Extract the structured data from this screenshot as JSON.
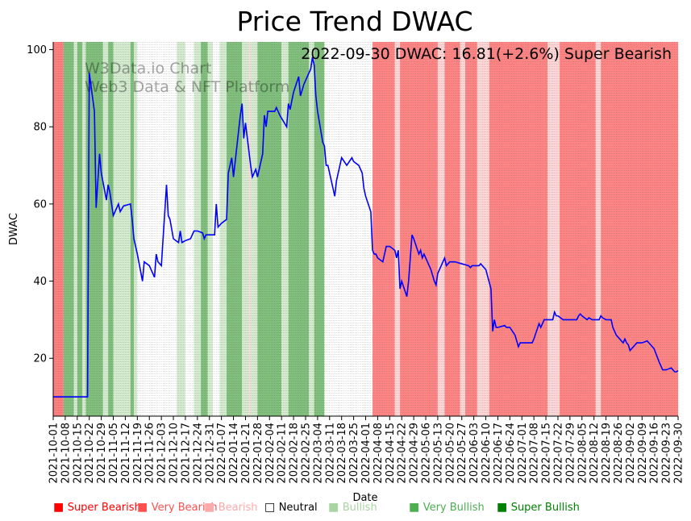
{
  "chart_data": {
    "type": "line",
    "title": "Price Trend DWAC",
    "annotation": "2022-09-30 DWAC: 16.81(+2.6%) Super Bearish",
    "watermark": [
      "W3Data.io Chart",
      "Web3 Data & NFT Platform"
    ],
    "xlabel": "Date",
    "ylabel": "DWAC",
    "ylim": [
      5,
      102
    ],
    "yticks": [
      20,
      40,
      60,
      80,
      100
    ],
    "x_range": [
      "2021-10-01",
      "2022-09-30"
    ],
    "xticks": [
      "2021-10-01",
      "2021-10-08",
      "2021-10-15",
      "2021-10-22",
      "2021-10-29",
      "2021-11-05",
      "2021-11-12",
      "2021-11-19",
      "2021-11-26",
      "2021-12-03",
      "2021-12-10",
      "2021-12-17",
      "2021-12-24",
      "2021-12-31",
      "2022-01-07",
      "2022-01-14",
      "2022-01-21",
      "2022-01-28",
      "2022-02-04",
      "2022-02-11",
      "2022-02-18",
      "2022-02-25",
      "2022-03-04",
      "2022-03-11",
      "2022-03-18",
      "2022-03-25",
      "2022-04-01",
      "2022-04-08",
      "2022-04-15",
      "2022-04-22",
      "2022-04-29",
      "2022-05-06",
      "2022-05-13",
      "2022-05-20",
      "2022-05-27",
      "2022-06-03",
      "2022-06-10",
      "2022-06-17",
      "2022-06-24",
      "2022-07-01",
      "2022-07-08",
      "2022-07-15",
      "2022-07-22",
      "2022-07-29",
      "2022-08-05",
      "2022-08-12",
      "2022-08-19",
      "2022-08-26",
      "2022-09-02",
      "2022-09-09",
      "2022-09-16",
      "2022-09-23",
      "2022-09-30"
    ],
    "series": [
      {
        "name": "DWAC",
        "color": "#0000ff",
        "points": [
          [
            "2021-10-01",
            10
          ],
          [
            "2021-10-21",
            10
          ],
          [
            "2021-10-22",
            94
          ],
          [
            "2021-10-25",
            84
          ],
          [
            "2021-10-26",
            59
          ],
          [
            "2021-10-28",
            73
          ],
          [
            "2021-10-29",
            68
          ],
          [
            "2021-11-01",
            61
          ],
          [
            "2021-11-02",
            65
          ],
          [
            "2021-11-03",
            63
          ],
          [
            "2021-11-05",
            57
          ],
          [
            "2021-11-08",
            60
          ],
          [
            "2021-11-09",
            58
          ],
          [
            "2021-11-11",
            59.5
          ],
          [
            "2021-11-15",
            60
          ],
          [
            "2021-11-16",
            56
          ],
          [
            "2021-11-17",
            51
          ],
          [
            "2021-11-19",
            47
          ],
          [
            "2021-11-22",
            40
          ],
          [
            "2021-11-23",
            45
          ],
          [
            "2021-11-26",
            44
          ],
          [
            "2021-11-29",
            41
          ],
          [
            "2021-11-30",
            47
          ],
          [
            "2021-12-01",
            45
          ],
          [
            "2021-12-03",
            44
          ],
          [
            "2021-12-06",
            65
          ],
          [
            "2021-12-07",
            57
          ],
          [
            "2021-12-08",
            56
          ],
          [
            "2021-12-10",
            51
          ],
          [
            "2021-12-13",
            50
          ],
          [
            "2021-12-14",
            53
          ],
          [
            "2021-12-15",
            50
          ],
          [
            "2021-12-17",
            50.5
          ],
          [
            "2021-12-20",
            51
          ],
          [
            "2021-12-22",
            53
          ],
          [
            "2021-12-24",
            53
          ],
          [
            "2021-12-27",
            52.5
          ],
          [
            "2021-12-28",
            51
          ],
          [
            "2021-12-29",
            52
          ],
          [
            "2021-12-31",
            52
          ],
          [
            "2022-01-03",
            52
          ],
          [
            "2022-01-04",
            60
          ],
          [
            "2022-01-05",
            54
          ],
          [
            "2022-01-07",
            55
          ],
          [
            "2022-01-10",
            56
          ],
          [
            "2022-01-11",
            68
          ],
          [
            "2022-01-13",
            72
          ],
          [
            "2022-01-14",
            67
          ],
          [
            "2022-01-18",
            83
          ],
          [
            "2022-01-19",
            86
          ],
          [
            "2022-01-20",
            77
          ],
          [
            "2022-01-21",
            81
          ],
          [
            "2022-01-24",
            70
          ],
          [
            "2022-01-25",
            67
          ],
          [
            "2022-01-27",
            69
          ],
          [
            "2022-01-28",
            67
          ],
          [
            "2022-01-31",
            73
          ],
          [
            "2022-02-01",
            83
          ],
          [
            "2022-02-02",
            80
          ],
          [
            "2022-02-03",
            84
          ],
          [
            "2022-02-07",
            84
          ],
          [
            "2022-02-08",
            85
          ],
          [
            "2022-02-10",
            83
          ],
          [
            "2022-02-14",
            80
          ],
          [
            "2022-02-15",
            86
          ],
          [
            "2022-02-16",
            84.5
          ],
          [
            "2022-02-18",
            89
          ],
          [
            "2022-02-21",
            93
          ],
          [
            "2022-02-22",
            88
          ],
          [
            "2022-02-24",
            91
          ],
          [
            "2022-02-25",
            92
          ],
          [
            "2022-02-28",
            95
          ],
          [
            "2022-03-01",
            98
          ],
          [
            "2022-03-02",
            96
          ],
          [
            "2022-03-03",
            88
          ],
          [
            "2022-03-04",
            84
          ],
          [
            "2022-03-07",
            76
          ],
          [
            "2022-03-08",
            75
          ],
          [
            "2022-03-09",
            70
          ],
          [
            "2022-03-10",
            70
          ],
          [
            "2022-03-11",
            68
          ],
          [
            "2022-03-14",
            62
          ],
          [
            "2022-03-15",
            66
          ],
          [
            "2022-03-16",
            68
          ],
          [
            "2022-03-18",
            72
          ],
          [
            "2022-03-21",
            70
          ],
          [
            "2022-03-24",
            72
          ],
          [
            "2022-03-25",
            71
          ],
          [
            "2022-03-28",
            70
          ],
          [
            "2022-03-30",
            68
          ],
          [
            "2022-03-31",
            64
          ],
          [
            "2022-04-01",
            62
          ],
          [
            "2022-04-04",
            58
          ],
          [
            "2022-04-05",
            48
          ],
          [
            "2022-04-06",
            47
          ],
          [
            "2022-04-07",
            47
          ],
          [
            "2022-04-08",
            46
          ],
          [
            "2022-04-11",
            45
          ],
          [
            "2022-04-13",
            49
          ],
          [
            "2022-04-15",
            49
          ],
          [
            "2022-04-18",
            48
          ],
          [
            "2022-04-19",
            46
          ],
          [
            "2022-04-20",
            48
          ],
          [
            "2022-04-21",
            38
          ],
          [
            "2022-04-22",
            40
          ],
          [
            "2022-04-25",
            36
          ],
          [
            "2022-04-26",
            40
          ],
          [
            "2022-04-28",
            52
          ],
          [
            "2022-04-29",
            51
          ],
          [
            "2022-05-02",
            47
          ],
          [
            "2022-05-03",
            48
          ],
          [
            "2022-05-04",
            46
          ],
          [
            "2022-05-05",
            47
          ],
          [
            "2022-05-06",
            46
          ],
          [
            "2022-05-09",
            43
          ],
          [
            "2022-05-11",
            40
          ],
          [
            "2022-05-12",
            39
          ],
          [
            "2022-05-13",
            42
          ],
          [
            "2022-05-16",
            45
          ],
          [
            "2022-05-17",
            46
          ],
          [
            "2022-05-18",
            44
          ],
          [
            "2022-05-20",
            45
          ],
          [
            "2022-05-23",
            45
          ],
          [
            "2022-05-27",
            44.5
          ],
          [
            "2022-05-31",
            44
          ],
          [
            "2022-06-01",
            43.5
          ],
          [
            "2022-06-02",
            44
          ],
          [
            "2022-06-06",
            44
          ],
          [
            "2022-06-07",
            44.5
          ],
          [
            "2022-06-08",
            44
          ],
          [
            "2022-06-10",
            43
          ],
          [
            "2022-06-13",
            38
          ],
          [
            "2022-06-14",
            27
          ],
          [
            "2022-06-15",
            30
          ],
          [
            "2022-06-16",
            28
          ],
          [
            "2022-06-17",
            28
          ],
          [
            "2022-06-21",
            28.5
          ],
          [
            "2022-06-22",
            28
          ],
          [
            "2022-06-24",
            28
          ],
          [
            "2022-06-27",
            26
          ],
          [
            "2022-06-29",
            23
          ],
          [
            "2022-06-30",
            24
          ],
          [
            "2022-07-01",
            24
          ],
          [
            "2022-07-05",
            24
          ],
          [
            "2022-07-07",
            24
          ],
          [
            "2022-07-08",
            25
          ],
          [
            "2022-07-11",
            29
          ],
          [
            "2022-07-12",
            28
          ],
          [
            "2022-07-14",
            30
          ],
          [
            "2022-07-15",
            30
          ],
          [
            "2022-07-19",
            30
          ],
          [
            "2022-07-20",
            32
          ],
          [
            "2022-07-21",
            31
          ],
          [
            "2022-07-22",
            31
          ],
          [
            "2022-07-25",
            30
          ],
          [
            "2022-07-29",
            30
          ],
          [
            "2022-08-02",
            30
          ],
          [
            "2022-08-03",
            31
          ],
          [
            "2022-08-04",
            31.5
          ],
          [
            "2022-08-05",
            31
          ],
          [
            "2022-08-08",
            30
          ],
          [
            "2022-08-09",
            30.5
          ],
          [
            "2022-08-11",
            30
          ],
          [
            "2022-08-12",
            30
          ],
          [
            "2022-08-15",
            30
          ],
          [
            "2022-08-16",
            31
          ],
          [
            "2022-08-17",
            30.5
          ],
          [
            "2022-08-19",
            30
          ],
          [
            "2022-08-22",
            30
          ],
          [
            "2022-08-23",
            28
          ],
          [
            "2022-08-24",
            27
          ],
          [
            "2022-08-25",
            26
          ],
          [
            "2022-08-26",
            25.5
          ],
          [
            "2022-08-29",
            24
          ],
          [
            "2022-08-30",
            25
          ],
          [
            "2022-08-31",
            24
          ],
          [
            "2022-09-01",
            23.5
          ],
          [
            "2022-09-02",
            22
          ],
          [
            "2022-09-06",
            24
          ],
          [
            "2022-09-09",
            24
          ],
          [
            "2022-09-12",
            24.5
          ],
          [
            "2022-09-13",
            24
          ],
          [
            "2022-09-14",
            23.5
          ],
          [
            "2022-09-16",
            22.5
          ],
          [
            "2022-09-19",
            19
          ],
          [
            "2022-09-20",
            18
          ],
          [
            "2022-09-21",
            17
          ],
          [
            "2022-09-23",
            17
          ],
          [
            "2022-09-26",
            17.5
          ],
          [
            "2022-09-27",
            17
          ],
          [
            "2022-09-28",
            16.5
          ],
          [
            "2022-09-29",
            16.5
          ],
          [
            "2022-09-30",
            16.81
          ]
        ]
      }
    ],
    "background_regimes": [
      [
        "2021-10-01",
        "2021-10-07",
        "Super Bearish"
      ],
      [
        "2021-10-07",
        "2021-10-13",
        "Very Bullish"
      ],
      [
        "2021-10-13",
        "2021-10-15",
        "Bullish"
      ],
      [
        "2021-10-15",
        "2021-10-18",
        "Very Bullish"
      ],
      [
        "2021-10-18",
        "2021-10-20",
        "Bullish"
      ],
      [
        "2021-10-20",
        "2021-10-30",
        "Very Bullish"
      ],
      [
        "2021-10-30",
        "2021-11-02",
        "Bullish"
      ],
      [
        "2021-11-02",
        "2021-11-05",
        "Very Bullish"
      ],
      [
        "2021-11-05",
        "2021-11-15",
        "Bullish"
      ],
      [
        "2021-11-15",
        "2021-11-17",
        "Very Bullish"
      ],
      [
        "2021-11-17",
        "2021-11-19",
        "Bullish"
      ],
      [
        "2021-11-19",
        "2021-12-12",
        "Neutral"
      ],
      [
        "2021-12-12",
        "2021-12-17",
        "Bullish"
      ],
      [
        "2021-12-17",
        "2021-12-22",
        "Neutral"
      ],
      [
        "2021-12-22",
        "2021-12-26",
        "Bullish"
      ],
      [
        "2021-12-26",
        "2021-12-30",
        "Very Bullish"
      ],
      [
        "2021-12-30",
        "2022-01-02",
        "Bullish"
      ],
      [
        "2022-01-02",
        "2022-01-06",
        "Neutral"
      ],
      [
        "2022-01-06",
        "2022-01-10",
        "Bullish"
      ],
      [
        "2022-01-10",
        "2022-01-19",
        "Very Bullish"
      ],
      [
        "2022-01-19",
        "2022-01-23",
        "Bullish"
      ],
      [
        "2022-01-23",
        "2022-01-24",
        "Bearish"
      ],
      [
        "2022-01-24",
        "2022-01-28",
        "Bullish"
      ],
      [
        "2022-01-28",
        "2022-02-11",
        "Very Bullish"
      ],
      [
        "2022-02-11",
        "2022-02-15",
        "Bullish"
      ],
      [
        "2022-02-15",
        "2022-02-27",
        "Very Bullish"
      ],
      [
        "2022-02-27",
        "2022-03-02",
        "Bullish"
      ],
      [
        "2022-03-02",
        "2022-03-08",
        "Very Bullish"
      ],
      [
        "2022-03-08",
        "2022-04-05",
        "Neutral"
      ],
      [
        "2022-04-05",
        "2022-04-18",
        "Very Bearish"
      ],
      [
        "2022-04-18",
        "2022-04-21",
        "Bearish"
      ],
      [
        "2022-04-21",
        "2022-05-13",
        "Very Bearish"
      ],
      [
        "2022-05-13",
        "2022-05-17",
        "Bearish"
      ],
      [
        "2022-05-17",
        "2022-05-26",
        "Very Bearish"
      ],
      [
        "2022-05-26",
        "2022-05-29",
        "Bearish"
      ],
      [
        "2022-05-29",
        "2022-06-05",
        "Very Bearish"
      ],
      [
        "2022-06-05",
        "2022-06-12",
        "Bearish"
      ],
      [
        "2022-06-12",
        "2022-07-16",
        "Very Bearish"
      ],
      [
        "2022-07-16",
        "2022-07-23",
        "Bearish"
      ],
      [
        "2022-07-23",
        "2022-08-13",
        "Very Bearish"
      ],
      [
        "2022-08-13",
        "2022-08-16",
        "Bearish"
      ],
      [
        "2022-08-16",
        "2022-09-30",
        "Very Bearish"
      ]
    ],
    "regime_colors": {
      "Super Bearish": "#ff7f7f",
      "Very Bearish": "#ff8585",
      "Bearish": "#ffd6d6",
      "Neutral": "#ffffff",
      "Bullish": "#d4ebd0",
      "Very Bullish": "#80bf7c",
      "Super Bullish": "#4a9e45"
    },
    "legend": [
      {
        "label": "Super Bearish",
        "marker": "■",
        "color": "#ff0000"
      },
      {
        "label": "Very Bearish",
        "marker": "■",
        "color": "#ff5050"
      },
      {
        "label": "Bearish",
        "marker": "■",
        "color": "#ffaaaa"
      },
      {
        "label": "Neutral",
        "marker": "□",
        "color": "#000000"
      },
      {
        "label": "Bullish",
        "marker": "■",
        "color": "#a8d5a2"
      },
      {
        "label": "Very Bullish",
        "marker": "■",
        "color": "#4caf50"
      },
      {
        "label": "Super Bullish",
        "marker": "■",
        "color": "#008000"
      }
    ]
  }
}
